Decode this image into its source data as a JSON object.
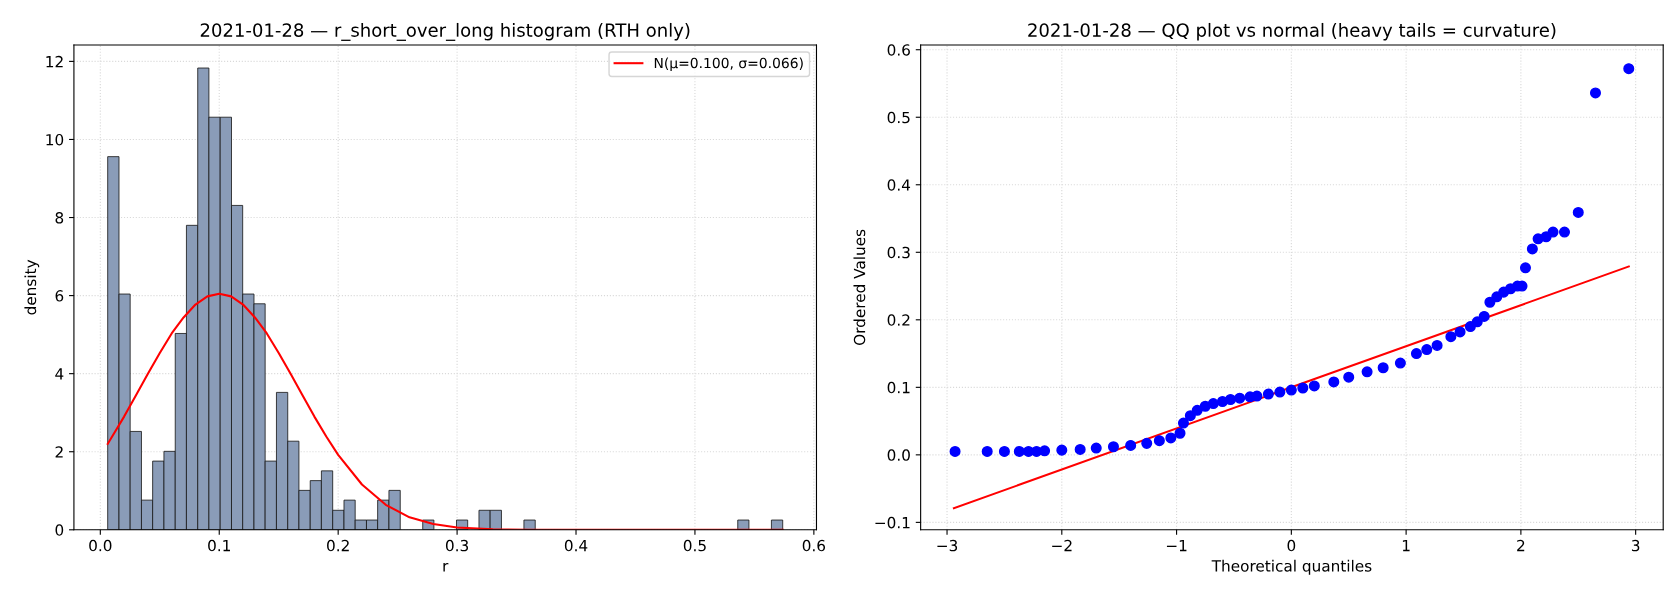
{
  "chart_data": [
    {
      "type": "histogram",
      "title": "2021-01-28 — r_short_over_long histogram (RTH only)",
      "xlabel": "r",
      "ylabel": "density",
      "bins": [
        0.0062,
        0.0157,
        0.0251,
        0.0346,
        0.044,
        0.0535,
        0.063,
        0.0724,
        0.0819,
        0.0913,
        0.1008,
        0.1103,
        0.1197,
        0.1292,
        0.1386,
        0.1481,
        0.1576,
        0.167,
        0.1765,
        0.1859,
        0.1954,
        0.2049,
        0.2143,
        0.2238,
        0.2332,
        0.2427,
        0.2522,
        0.2616,
        0.2711,
        0.2805,
        0.29,
        0.2995,
        0.3089,
        0.3184,
        0.3278,
        0.3373,
        0.3468,
        0.3562,
        0.3657,
        0.3751,
        0.3846,
        0.3941,
        0.4035,
        0.413,
        0.4224,
        0.4319,
        0.4414,
        0.4508,
        0.4603,
        0.4697,
        0.4792,
        0.4887,
        0.4981,
        0.5076,
        0.517,
        0.5265,
        0.536,
        0.5454,
        0.5549,
        0.5643,
        0.5738
      ],
      "series": [
        {
          "type": "histogram",
          "color": "#8a9cb8",
          "values": [
            9.56,
            6.04,
            2.52,
            0.76,
            1.76,
            2.01,
            5.03,
            7.8,
            11.83,
            10.57,
            10.57,
            8.31,
            6.04,
            5.79,
            1.76,
            3.52,
            2.27,
            1.01,
            1.26,
            1.51,
            0.5,
            0.76,
            0.25,
            0.25,
            0.76,
            1.01,
            0,
            0,
            0.25,
            0,
            0,
            0.25,
            0,
            0.5,
            0.5,
            0,
            0,
            0.25,
            0,
            0,
            0,
            0,
            0,
            0,
            0,
            0,
            0,
            0,
            0,
            0,
            0,
            0,
            0,
            0,
            0,
            0,
            0.25,
            0,
            0,
            0.25
          ]
        },
        {
          "type": "line",
          "name": "N(μ=0.100, σ=0.066)",
          "color": "#ff0000",
          "x": [
            0.0062,
            0.02,
            0.03,
            0.04,
            0.05,
            0.06,
            0.07,
            0.08,
            0.09,
            0.1,
            0.11,
            0.12,
            0.13,
            0.14,
            0.15,
            0.16,
            0.17,
            0.18,
            0.19,
            0.2,
            0.22,
            0.24,
            0.26,
            0.28,
            0.3,
            0.33,
            0.36,
            0.45,
            0.5738
          ],
          "values": [
            2.2,
            2.9,
            3.45,
            4.0,
            4.53,
            5.03,
            5.44,
            5.77,
            5.98,
            6.05,
            5.98,
            5.77,
            5.44,
            5.03,
            4.53,
            4.0,
            3.45,
            2.9,
            2.39,
            1.92,
            1.16,
            0.64,
            0.32,
            0.15,
            0.06,
            0.01,
            0,
            0,
            0
          ]
        }
      ],
      "xlim": [
        -0.0222,
        0.6022
      ],
      "xticks": [
        {
          "value": 0,
          "label": "0.0"
        },
        0.1,
        0.2,
        0.3,
        0.4,
        0.5,
        0.6
      ],
      "ylim": [
        0,
        12.42
      ],
      "yticks": [
        0,
        2,
        4,
        6,
        8,
        10,
        12
      ],
      "grid": true,
      "legend": "top right"
    },
    {
      "type": "scatter",
      "title": "2021-01-28 — QQ plot vs normal (heavy tails = curvature)",
      "xlabel": "Theoretical quantiles",
      "ylabel": "Ordered Values",
      "series": [
        {
          "type": "scatter",
          "color": "#0000ff",
          "marker": "circle",
          "x": [
            -2.93,
            -2.65,
            -2.5,
            -2.37,
            -2.29,
            -2.22,
            -2.15,
            -2.0,
            -1.84,
            -1.7,
            -1.55,
            -1.4,
            -1.26,
            -1.15,
            -1.05,
            -0.97,
            -0.94,
            -0.88,
            -0.82,
            -0.75,
            -0.68,
            -0.6,
            -0.53,
            -0.45,
            -0.36,
            -0.3,
            -0.2,
            -0.1,
            0,
            0.1,
            0.2,
            0.37,
            0.5,
            0.66,
            0.8,
            0.95,
            1.09,
            1.18,
            1.27,
            1.39,
            1.47,
            1.56,
            1.62,
            1.68,
            1.73,
            1.79,
            1.85,
            1.91,
            1.97,
            2.01,
            2.04,
            2.1,
            2.15,
            2.22,
            2.28,
            2.38,
            2.5,
            2.65,
            2.94
          ],
          "values": [
            0.005,
            0.005,
            0.005,
            0.005,
            0.005,
            0.005,
            0.006,
            0.007,
            0.008,
            0.01,
            0.012,
            0.014,
            0.017,
            0.021,
            0.025,
            0.032,
            0.047,
            0.058,
            0.066,
            0.072,
            0.076,
            0.079,
            0.082,
            0.084,
            0.086,
            0.087,
            0.09,
            0.093,
            0.096,
            0.099,
            0.102,
            0.108,
            0.115,
            0.123,
            0.129,
            0.136,
            0.15,
            0.156,
            0.162,
            0.175,
            0.182,
            0.19,
            0.197,
            0.205,
            0.226,
            0.234,
            0.241,
            0.246,
            0.25,
            0.25,
            0.277,
            0.305,
            0.32,
            0.323,
            0.33,
            0.33,
            0.359,
            0.536,
            0.572
          ]
        },
        {
          "type": "line",
          "color": "#ff0000",
          "x": [
            -2.94,
            2.94
          ],
          "values": [
            -0.079,
            0.279
          ]
        }
      ],
      "xlim": [
        -3.23,
        3.24
      ],
      "xticks": [
        {
          "value": -3,
          "label": "−3"
        },
        {
          "value": -2,
          "label": "−2"
        },
        {
          "value": -1,
          "label": "−1"
        },
        0,
        1,
        2,
        3
      ],
      "ylim": [
        -0.111,
        0.607
      ],
      "yticks": [
        {
          "value": -0.1,
          "label": "−0.1"
        },
        {
          "value": 0,
          "label": "0.0"
        },
        0.1,
        0.2,
        0.3,
        0.4,
        0.5,
        0.6
      ],
      "grid": true
    }
  ]
}
